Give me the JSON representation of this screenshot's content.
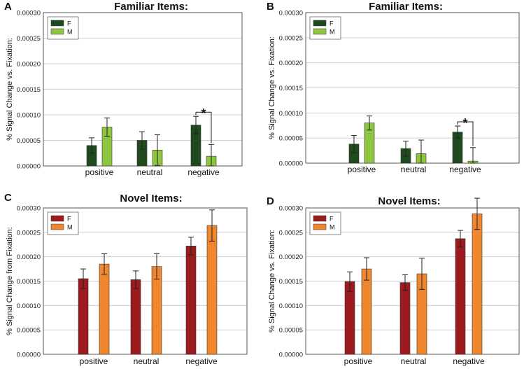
{
  "chart_data": [
    {
      "type": "bar",
      "panel_label": "A",
      "title": "Familiar Items:",
      "ylabel": "% Signal Change vs. Fixation:",
      "xlabel": "",
      "categories": [
        "positive",
        "neutral",
        "negative"
      ],
      "ylim": [
        0,
        0.0003
      ],
      "yticks": [
        "0.00000",
        "0.00005",
        "0.00010",
        "0.00015",
        "0.00020",
        "0.00025",
        "0.00030"
      ],
      "legend_position": "top-left",
      "series": [
        {
          "name": "F",
          "color": "#1e4a1e",
          "values": [
            4e-05,
            5e-05,
            8e-05
          ],
          "errors": [
            1.5e-05,
            1.7e-05,
            1.7e-05
          ]
        },
        {
          "name": "M",
          "color": "#8ec63f",
          "values": [
            7.6e-05,
            3.1e-05,
            1.9e-05
          ],
          "errors": [
            1.8e-05,
            3e-05,
            2.3e-05
          ]
        }
      ],
      "annotation": {
        "text": "*",
        "category": "negative"
      }
    },
    {
      "type": "bar",
      "panel_label": "B",
      "title": "Familiar Items:",
      "ylabel": "% Signal Change vs. Fixation:",
      "xlabel": "",
      "categories": [
        "positive",
        "neutral",
        "negative"
      ],
      "ylim": [
        0,
        0.0003
      ],
      "yticks": [
        "0.00000",
        "0.00005",
        "0.00010",
        "0.00015",
        "0.00020",
        "0.00025",
        "0.00030"
      ],
      "legend_position": "top-left",
      "series": [
        {
          "name": "F",
          "color": "#1e4a1e",
          "values": [
            3.8e-05,
            2.9e-05,
            6.2e-05
          ],
          "errors": [
            1.7e-05,
            1.5e-05,
            1.2e-05
          ]
        },
        {
          "name": "M",
          "color": "#8ec63f",
          "values": [
            8e-05,
            1.9e-05,
            4e-06
          ],
          "errors": [
            1.4e-05,
            2.7e-05,
            2.7e-05
          ]
        }
      ],
      "annotation": {
        "text": "*",
        "category": "negative"
      }
    },
    {
      "type": "bar",
      "panel_label": "C",
      "title": "Novel Items:",
      "ylabel": "% Signal Change from Fixation:",
      "xlabel": "",
      "categories": [
        "positive",
        "neutral",
        "negative"
      ],
      "ylim": [
        0,
        0.0003
      ],
      "yticks": [
        "0.00000",
        "0.00005",
        "0.00010",
        "0.00015",
        "0.00020",
        "0.00025",
        "0.00030"
      ],
      "legend_position": "top-left",
      "series": [
        {
          "name": "F",
          "color": "#9b1b1f",
          "values": [
            0.000155,
            0.000153,
            0.000222
          ],
          "errors": [
            2e-05,
            1.8e-05,
            1.8e-05
          ]
        },
        {
          "name": "M",
          "color": "#f0862e",
          "values": [
            0.000185,
            0.00018,
            0.000264
          ],
          "errors": [
            2.1e-05,
            2.6e-05,
            3.2e-05
          ]
        }
      ]
    },
    {
      "type": "bar",
      "panel_label": "D",
      "title": "Novel Items:",
      "ylabel": "% Signal Change vs. Fixation:",
      "xlabel": "",
      "categories": [
        "positive",
        "neutral",
        "negative"
      ],
      "ylim": [
        0,
        0.0003
      ],
      "yticks": [
        "0.00000",
        "0.00005",
        "0.00010",
        "0.00015",
        "0.00020",
        "0.00025",
        "0.00030"
      ],
      "legend_position": "top-left",
      "series": [
        {
          "name": "F",
          "color": "#9b1b1f",
          "values": [
            0.000149,
            0.000147,
            0.000237
          ],
          "errors": [
            2e-05,
            1.6e-05,
            1.7e-05
          ]
        },
        {
          "name": "M",
          "color": "#f0862e",
          "values": [
            0.000175,
            0.000165,
            0.000288
          ],
          "errors": [
            2.3e-05,
            3.2e-05,
            3.2e-05
          ]
        }
      ]
    }
  ]
}
